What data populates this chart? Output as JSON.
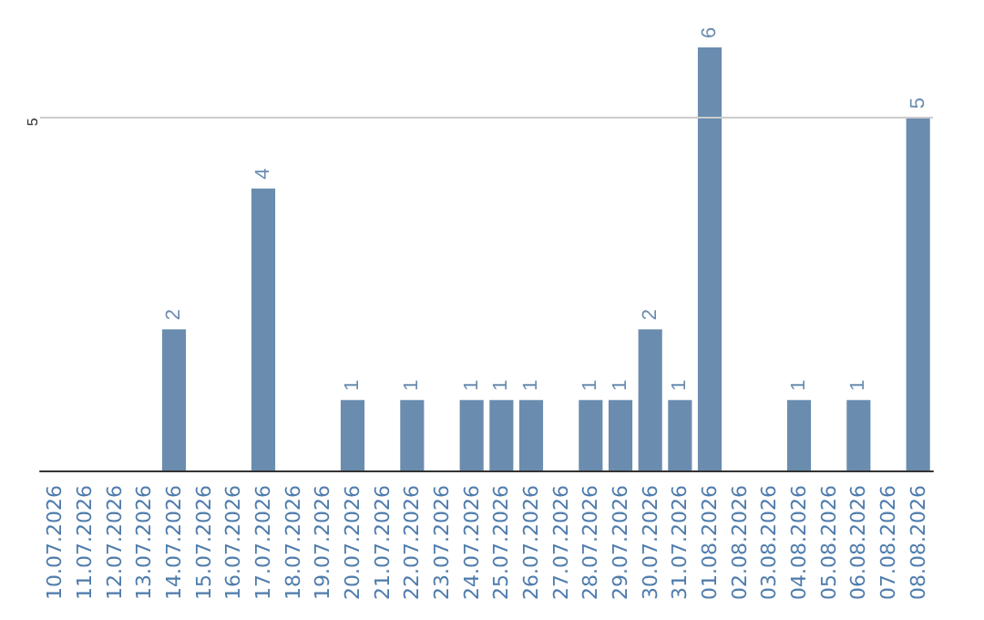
{
  "chart_data": {
    "type": "bar",
    "categories": [
      "10.07.2026",
      "11.07.2026",
      "12.07.2026",
      "13.07.2026",
      "14.07.2026",
      "15.07.2026",
      "16.07.2026",
      "17.07.2026",
      "18.07.2026",
      "19.07.2026",
      "20.07.2026",
      "21.07.2026",
      "22.07.2026",
      "23.07.2026",
      "24.07.2026",
      "25.07.2026",
      "26.07.2026",
      "27.07.2026",
      "28.07.2026",
      "29.07.2026",
      "30.07.2026",
      "31.07.2026",
      "01.08.2026",
      "02.08.2026",
      "03.08.2026",
      "04.08.2026",
      "05.08.2026",
      "06.08.2026",
      "07.08.2026",
      "08.08.2026"
    ],
    "values": [
      0,
      0,
      0,
      0,
      2,
      0,
      0,
      4,
      0,
      0,
      1,
      0,
      1,
      0,
      1,
      1,
      1,
      0,
      1,
      1,
      2,
      1,
      6,
      0,
      0,
      1,
      0,
      1,
      0,
      5
    ],
    "value_labels": [
      null,
      null,
      null,
      null,
      "2",
      null,
      null,
      "4",
      null,
      null,
      "1",
      null,
      "1",
      null,
      "1",
      "1",
      "1",
      null,
      "1",
      "1",
      "2",
      "1",
      "6",
      null,
      null,
      "1",
      null,
      "1",
      null,
      "5"
    ],
    "color": "#6a8caf",
    "ref_lines": [
      {
        "axis": "y",
        "value": 5,
        "label": "5",
        "color": "#cccccc"
      }
    ]
  }
}
